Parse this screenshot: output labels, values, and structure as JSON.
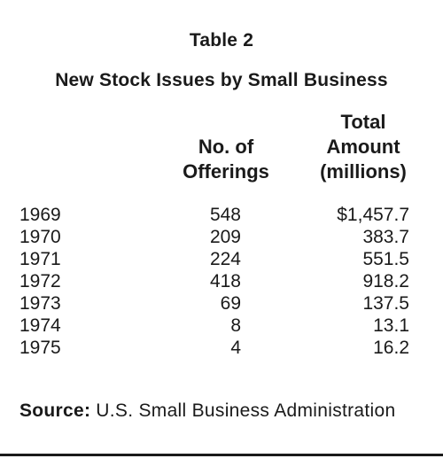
{
  "table": {
    "title": "Table 2",
    "subtitle": "New Stock Issues by Small Business",
    "headers": {
      "offerings": [
        "No. of",
        "Offerings"
      ],
      "amount": [
        "Total",
        "Amount",
        "(millions)"
      ]
    },
    "rows": [
      {
        "year": "1969",
        "offerings": "548",
        "amount": "$1,457.7"
      },
      {
        "year": "1970",
        "offerings": "209",
        "amount": "383.7"
      },
      {
        "year": "1971",
        "offerings": "224",
        "amount": "551.5"
      },
      {
        "year": "1972",
        "offerings": "418",
        "amount": "918.2"
      },
      {
        "year": "1973",
        "offerings": "69",
        "amount": "137.5"
      },
      {
        "year": "1974",
        "offerings": "8",
        "amount": "13.1"
      },
      {
        "year": "1975",
        "offerings": "4",
        "amount": "16.2"
      }
    ],
    "source": {
      "label": "Source:",
      "text": "U.S. Small Business Administration"
    }
  }
}
